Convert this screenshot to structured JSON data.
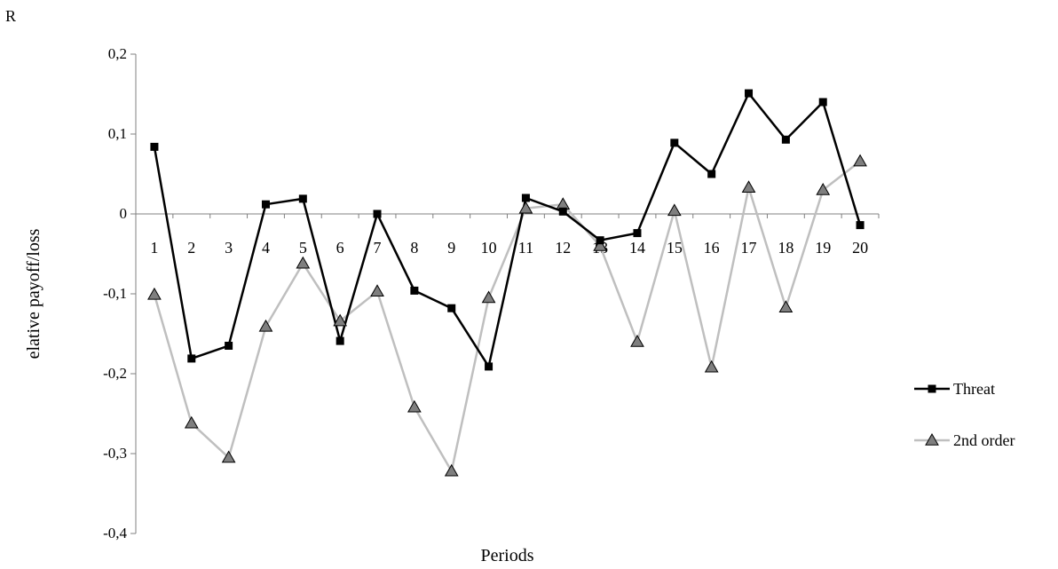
{
  "stray_text": "R",
  "chart_data": {
    "type": "line",
    "title": "",
    "xlabel": "Periods",
    "ylabel": "elative payoff/loss",
    "categories": [
      "1",
      "2",
      "3",
      "4",
      "5",
      "6",
      "7",
      "8",
      "9",
      "10",
      "11",
      "12",
      "13",
      "14",
      "15",
      "16",
      "17",
      "18",
      "19",
      "20"
    ],
    "ylim": [
      -0.4,
      0.2
    ],
    "yticks": [
      0.2,
      0.1,
      0,
      -0.1,
      -0.2,
      -0.3,
      -0.4
    ],
    "ytick_labels": [
      "0,2",
      "0,1",
      "0",
      "-0,1",
      "-0,2",
      "-0,3",
      "-0,4"
    ],
    "grid": false,
    "legend_position": "right",
    "series": [
      {
        "name": "Threat",
        "color": "#000000",
        "marker": "square",
        "values": [
          0.084,
          -0.181,
          -0.165,
          0.012,
          0.019,
          -0.159,
          0.0,
          -0.096,
          -0.118,
          -0.191,
          0.02,
          0.003,
          -0.033,
          -0.024,
          0.089,
          0.05,
          0.151,
          0.093,
          0.14,
          -0.014
        ]
      },
      {
        "name": "2nd order",
        "color": "#bfbfbf",
        "marker": "triangle",
        "values": [
          -0.101,
          -0.262,
          -0.305,
          -0.141,
          -0.062,
          -0.134,
          -0.097,
          -0.242,
          -0.322,
          -0.105,
          0.007,
          0.012,
          -0.04,
          -0.16,
          0.004,
          -0.192,
          0.033,
          -0.117,
          0.03,
          0.066
        ]
      }
    ]
  }
}
